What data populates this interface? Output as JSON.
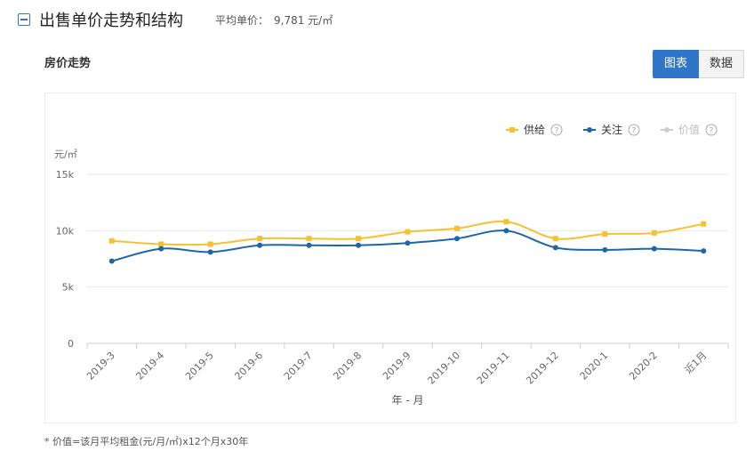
{
  "header": {
    "title": "出售单价走势和结构",
    "avg_price_label": "平均单价：",
    "avg_price_value": "9,781 元/㎡"
  },
  "subtitle": "房价走势",
  "toggle": {
    "chart_label": "图表",
    "data_label": "数据"
  },
  "legend": [
    {
      "name": "供给",
      "help": "?",
      "color": "#f5c12e",
      "marker": "square",
      "active": true
    },
    {
      "name": "关注",
      "help": "?",
      "color": "#1f66a6",
      "marker": "circle",
      "active": true
    },
    {
      "name": "价值",
      "help": "?",
      "color": "#cccccc",
      "marker": "circle",
      "active": false
    }
  ],
  "chart_data": {
    "type": "line",
    "categories": [
      "2019-3",
      "2019-4",
      "2019-5",
      "2019-6",
      "2019-7",
      "2019-8",
      "2019-9",
      "2019-10",
      "2019-11",
      "2019-12",
      "2020-1",
      "2020-2",
      "近1月"
    ],
    "series": [
      {
        "name": "供给",
        "values": [
          9100,
          8800,
          8800,
          9300,
          9300,
          9300,
          9900,
          10200,
          10800,
          9300,
          9700,
          9800,
          10600
        ]
      },
      {
        "name": "关注",
        "values": [
          7300,
          8400,
          8100,
          8700,
          8700,
          8700,
          8900,
          9300,
          10000,
          8500,
          8300,
          8400,
          8200
        ]
      }
    ],
    "y_unit": "元/㎡",
    "y_ticks": [
      "0",
      "5k",
      "10k",
      "15k"
    ],
    "ylim": [
      0,
      15000
    ],
    "xlabel": "年 - 月",
    "grid": true,
    "legend_position": "top-right"
  },
  "footnote": "* 价值=该月平均租金(元/月/㎡)x12个月x30年"
}
